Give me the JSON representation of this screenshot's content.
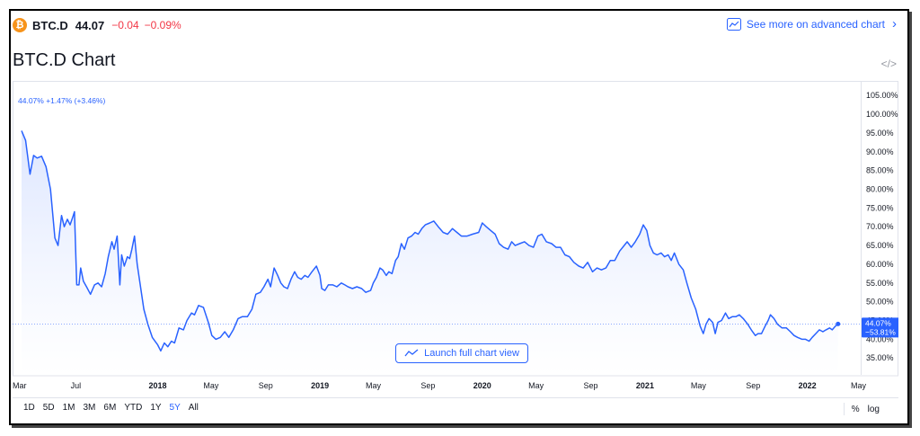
{
  "header": {
    "coin_icon": "bitcoin-icon",
    "coin_glyph": "₿",
    "symbol": "BTC.D",
    "price": "44.07",
    "change": "−0.04",
    "change_pct": "−0.09%",
    "advanced_link": "See more on advanced chart",
    "advanced_chevron": "›"
  },
  "title": "BTC.D Chart",
  "embed_icon": "</>",
  "chart_info": "44.07%  +1.47% (+3.46%)",
  "launch_button": "Launch full chart view",
  "colors": {
    "line": "#2962ff",
    "negative": "#f23645",
    "area_top": "#d9e3ff",
    "label_bg": "#2962ff"
  },
  "ranges": [
    {
      "label": "1D",
      "active": false
    },
    {
      "label": "5D",
      "active": false
    },
    {
      "label": "1M",
      "active": false
    },
    {
      "label": "3M",
      "active": false
    },
    {
      "label": "6M",
      "active": false
    },
    {
      "label": "YTD",
      "active": false
    },
    {
      "label": "1Y",
      "active": false
    },
    {
      "label": "5Y",
      "active": true
    },
    {
      "label": "All",
      "active": false
    }
  ],
  "scale_options": [
    "%",
    "log"
  ],
  "chart_data": {
    "type": "area",
    "title": "",
    "xlabel": "",
    "ylabel": "",
    "ylim": [
      30.5,
      106
    ],
    "yticks": [
      35,
      40,
      45,
      50,
      55,
      60,
      65,
      70,
      75,
      80,
      85,
      90,
      95,
      100,
      105
    ],
    "ytick_labels": [
      "35.00%",
      "40.00%",
      "45.00%",
      "50.00%",
      "55.00%",
      "60.00%",
      "65.00%",
      "70.00%",
      "75.00%",
      "80.00%",
      "85.00%",
      "90.00%",
      "95.00%",
      "100.00%",
      "105.00%"
    ],
    "xlim": [
      "2017-03-01",
      "2022-05-01"
    ],
    "xticks": [
      {
        "date": "2017-03-01",
        "label": "Mar",
        "bold": false
      },
      {
        "date": "2017-07-01",
        "label": "Jul",
        "bold": false
      },
      {
        "date": "2018-01-01",
        "label": "2018",
        "bold": true
      },
      {
        "date": "2018-05-01",
        "label": "May",
        "bold": false
      },
      {
        "date": "2018-09-01",
        "label": "Sep",
        "bold": false
      },
      {
        "date": "2019-01-01",
        "label": "2019",
        "bold": true
      },
      {
        "date": "2019-05-01",
        "label": "May",
        "bold": false
      },
      {
        "date": "2019-09-01",
        "label": "Sep",
        "bold": false
      },
      {
        "date": "2020-01-01",
        "label": "2020",
        "bold": true
      },
      {
        "date": "2020-05-01",
        "label": "May",
        "bold": false
      },
      {
        "date": "2020-09-01",
        "label": "Sep",
        "bold": false
      },
      {
        "date": "2021-01-01",
        "label": "2021",
        "bold": true
      },
      {
        "date": "2021-05-01",
        "label": "May",
        "bold": false
      },
      {
        "date": "2021-09-01",
        "label": "Sep",
        "bold": false
      },
      {
        "date": "2022-01-01",
        "label": "2022",
        "bold": true
      },
      {
        "date": "2022-05-01",
        "label": "May",
        "bold": false
      }
    ],
    "last_value": 44.07,
    "last_label": "44.07%",
    "last_change_label": "−53.81%",
    "series": [
      {
        "name": "BTC.D",
        "points": [
          [
            "2017-03-01",
            95.6
          ],
          [
            "2017-03-10",
            93.0
          ],
          [
            "2017-03-20",
            84.0
          ],
          [
            "2017-03-28",
            89.0
          ],
          [
            "2017-04-05",
            88.3
          ],
          [
            "2017-04-15",
            88.8
          ],
          [
            "2017-04-25",
            86.0
          ],
          [
            "2017-05-05",
            80.0
          ],
          [
            "2017-05-15",
            67.0
          ],
          [
            "2017-05-22",
            65.0
          ],
          [
            "2017-05-30",
            73.0
          ],
          [
            "2017-06-05",
            70.0
          ],
          [
            "2017-06-12",
            72.0
          ],
          [
            "2017-06-18",
            70.5
          ],
          [
            "2017-06-24",
            72.5
          ],
          [
            "2017-06-28",
            74.0
          ],
          [
            "2017-07-03",
            54.5
          ],
          [
            "2017-07-08",
            54.5
          ],
          [
            "2017-07-12",
            59.0
          ],
          [
            "2017-07-18",
            55.5
          ],
          [
            "2017-07-25",
            54.0
          ],
          [
            "2017-08-03",
            52.0
          ],
          [
            "2017-08-12",
            54.5
          ],
          [
            "2017-08-20",
            55.0
          ],
          [
            "2017-08-28",
            54.0
          ],
          [
            "2017-09-05",
            57.5
          ],
          [
            "2017-09-12",
            62.0
          ],
          [
            "2017-09-20",
            66.0
          ],
          [
            "2017-09-25",
            64.0
          ],
          [
            "2017-10-02",
            67.5
          ],
          [
            "2017-10-08",
            54.5
          ],
          [
            "2017-10-12",
            62.5
          ],
          [
            "2017-10-18",
            59.5
          ],
          [
            "2017-10-25",
            62.0
          ],
          [
            "2017-10-30",
            61.5
          ],
          [
            "2017-11-04",
            64.0
          ],
          [
            "2017-11-10",
            67.5
          ],
          [
            "2017-11-16",
            60.0
          ],
          [
            "2017-12-01",
            48.0
          ],
          [
            "2017-12-10",
            44.0
          ],
          [
            "2017-12-20",
            40.5
          ],
          [
            "2018-01-01",
            38.5
          ],
          [
            "2018-01-08",
            36.9
          ],
          [
            "2018-01-16",
            39.0
          ],
          [
            "2018-01-24",
            38.0
          ],
          [
            "2018-02-01",
            39.5
          ],
          [
            "2018-02-08",
            39.0
          ],
          [
            "2018-02-18",
            43.0
          ],
          [
            "2018-02-28",
            42.5
          ],
          [
            "2018-03-08",
            45.0
          ],
          [
            "2018-03-18",
            47.0
          ],
          [
            "2018-03-25",
            46.5
          ],
          [
            "2018-04-03",
            49.0
          ],
          [
            "2018-04-14",
            48.5
          ],
          [
            "2018-04-25",
            44.5
          ],
          [
            "2018-05-03",
            41.0
          ],
          [
            "2018-05-12",
            40.0
          ],
          [
            "2018-05-22",
            40.5
          ],
          [
            "2018-06-01",
            42.0
          ],
          [
            "2018-06-10",
            40.5
          ],
          [
            "2018-06-20",
            42.5
          ],
          [
            "2018-07-01",
            45.5
          ],
          [
            "2018-07-10",
            46.0
          ],
          [
            "2018-07-22",
            46.0
          ],
          [
            "2018-08-01",
            48.0
          ],
          [
            "2018-08-10",
            52.0
          ],
          [
            "2018-08-20",
            52.5
          ],
          [
            "2018-08-28",
            54.0
          ],
          [
            "2018-09-06",
            56.0
          ],
          [
            "2018-09-12",
            54.0
          ],
          [
            "2018-09-20",
            59.0
          ],
          [
            "2018-09-28",
            57.0
          ],
          [
            "2018-10-05",
            55.0
          ],
          [
            "2018-10-12",
            54.0
          ],
          [
            "2018-10-20",
            53.5
          ],
          [
            "2018-10-28",
            56.0
          ],
          [
            "2018-11-05",
            58.0
          ],
          [
            "2018-11-12",
            56.5
          ],
          [
            "2018-11-20",
            56.0
          ],
          [
            "2018-11-28",
            57.0
          ],
          [
            "2018-12-05",
            56.5
          ],
          [
            "2018-12-14",
            58.0
          ],
          [
            "2018-12-24",
            59.5
          ],
          [
            "2019-01-01",
            57.0
          ],
          [
            "2019-01-05",
            53.5
          ],
          [
            "2019-01-12",
            53.0
          ],
          [
            "2019-01-20",
            54.5
          ],
          [
            "2019-01-30",
            54.5
          ],
          [
            "2019-02-08",
            54.0
          ],
          [
            "2019-02-18",
            55.0
          ],
          [
            "2019-02-26",
            54.5
          ],
          [
            "2019-03-05",
            54.0
          ],
          [
            "2019-03-15",
            53.5
          ],
          [
            "2019-03-25",
            54.0
          ],
          [
            "2019-04-05",
            53.5
          ],
          [
            "2019-04-14",
            52.5
          ],
          [
            "2019-04-25",
            53.0
          ],
          [
            "2019-05-01",
            55.0
          ],
          [
            "2019-05-08",
            56.5
          ],
          [
            "2019-05-16",
            59.0
          ],
          [
            "2019-05-22",
            58.5
          ],
          [
            "2019-05-30",
            57.0
          ],
          [
            "2019-06-05",
            58.0
          ],
          [
            "2019-06-12",
            57.5
          ],
          [
            "2019-06-20",
            61.0
          ],
          [
            "2019-06-26",
            62.0
          ],
          [
            "2019-07-03",
            65.5
          ],
          [
            "2019-07-10",
            64.0
          ],
          [
            "2019-07-18",
            67.0
          ],
          [
            "2019-07-26",
            67.5
          ],
          [
            "2019-08-03",
            68.5
          ],
          [
            "2019-08-10",
            68.0
          ],
          [
            "2019-08-18",
            69.5
          ],
          [
            "2019-08-26",
            70.5
          ],
          [
            "2019-09-05",
            71.0
          ],
          [
            "2019-09-14",
            71.5
          ],
          [
            "2019-09-24",
            70.0
          ],
          [
            "2019-10-05",
            68.5
          ],
          [
            "2019-10-15",
            68.0
          ],
          [
            "2019-10-26",
            69.5
          ],
          [
            "2019-11-05",
            68.5
          ],
          [
            "2019-11-15",
            67.5
          ],
          [
            "2019-11-28",
            67.5
          ],
          [
            "2019-12-10",
            68.0
          ],
          [
            "2019-12-24",
            68.5
          ],
          [
            "2020-01-01",
            71.0
          ],
          [
            "2020-01-10",
            70.0
          ],
          [
            "2020-01-20",
            69.0
          ],
          [
            "2020-01-30",
            68.0
          ],
          [
            "2020-02-08",
            65.5
          ],
          [
            "2020-02-18",
            64.5
          ],
          [
            "2020-02-28",
            64.0
          ],
          [
            "2020-03-07",
            66.0
          ],
          [
            "2020-03-15",
            65.0
          ],
          [
            "2020-03-25",
            65.5
          ],
          [
            "2020-04-05",
            66.0
          ],
          [
            "2020-04-15",
            65.0
          ],
          [
            "2020-04-25",
            64.5
          ],
          [
            "2020-05-05",
            67.5
          ],
          [
            "2020-05-14",
            68.0
          ],
          [
            "2020-05-24",
            66.0
          ],
          [
            "2020-06-05",
            65.5
          ],
          [
            "2020-06-15",
            64.5
          ],
          [
            "2020-06-25",
            64.5
          ],
          [
            "2020-07-05",
            62.5
          ],
          [
            "2020-07-15",
            62.0
          ],
          [
            "2020-07-25",
            60.5
          ],
          [
            "2020-08-05",
            59.5
          ],
          [
            "2020-08-15",
            59.0
          ],
          [
            "2020-08-25",
            60.5
          ],
          [
            "2020-09-05",
            58.0
          ],
          [
            "2020-09-15",
            59.0
          ],
          [
            "2020-09-25",
            58.5
          ],
          [
            "2020-10-05",
            59.0
          ],
          [
            "2020-10-15",
            61.0
          ],
          [
            "2020-10-25",
            61.0
          ],
          [
            "2020-11-05",
            63.5
          ],
          [
            "2020-11-15",
            65.0
          ],
          [
            "2020-11-22",
            66.0
          ],
          [
            "2020-12-01",
            64.5
          ],
          [
            "2020-12-10",
            66.0
          ],
          [
            "2020-12-20",
            68.0
          ],
          [
            "2020-12-28",
            70.5
          ],
          [
            "2021-01-05",
            69.0
          ],
          [
            "2021-01-12",
            65.0
          ],
          [
            "2021-01-20",
            63.0
          ],
          [
            "2021-01-28",
            62.5
          ],
          [
            "2021-02-06",
            63.0
          ],
          [
            "2021-02-14",
            62.0
          ],
          [
            "2021-02-22",
            62.5
          ],
          [
            "2021-03-01",
            61.0
          ],
          [
            "2021-03-08",
            63.0
          ],
          [
            "2021-03-18",
            60.0
          ],
          [
            "2021-03-28",
            58.5
          ],
          [
            "2021-04-05",
            55.0
          ],
          [
            "2021-04-15",
            51.0
          ],
          [
            "2021-04-25",
            48.0
          ],
          [
            "2021-05-05",
            43.5
          ],
          [
            "2021-05-12",
            41.5
          ],
          [
            "2021-05-18",
            44.0
          ],
          [
            "2021-05-25",
            45.5
          ],
          [
            "2021-06-02",
            44.5
          ],
          [
            "2021-06-08",
            41.5
          ],
          [
            "2021-06-14",
            44.5
          ],
          [
            "2021-06-22",
            45.0
          ],
          [
            "2021-07-01",
            47.0
          ],
          [
            "2021-07-08",
            45.5
          ],
          [
            "2021-07-16",
            46.0
          ],
          [
            "2021-07-24",
            46.0
          ],
          [
            "2021-08-01",
            46.5
          ],
          [
            "2021-08-10",
            45.5
          ],
          [
            "2021-08-20",
            44.0
          ],
          [
            "2021-08-28",
            42.5
          ],
          [
            "2021-09-06",
            41.0
          ],
          [
            "2021-09-12",
            41.5
          ],
          [
            "2021-09-20",
            41.5
          ],
          [
            "2021-09-28",
            43.5
          ],
          [
            "2021-10-05",
            45.0
          ],
          [
            "2021-10-10",
            46.5
          ],
          [
            "2021-10-18",
            45.5
          ],
          [
            "2021-10-26",
            44.0
          ],
          [
            "2021-11-05",
            43.0
          ],
          [
            "2021-11-15",
            43.0
          ],
          [
            "2021-11-24",
            42.0
          ],
          [
            "2021-12-02",
            41.0
          ],
          [
            "2021-12-10",
            40.5
          ],
          [
            "2021-12-20",
            40.0
          ],
          [
            "2021-12-28",
            40.0
          ],
          [
            "2022-01-05",
            39.5
          ],
          [
            "2022-01-12",
            40.5
          ],
          [
            "2022-01-20",
            41.5
          ],
          [
            "2022-01-28",
            42.5
          ],
          [
            "2022-02-05",
            42.0
          ],
          [
            "2022-02-12",
            42.5
          ],
          [
            "2022-02-20",
            43.0
          ],
          [
            "2022-02-26",
            42.5
          ],
          [
            "2022-03-05",
            43.5
          ],
          [
            "2022-03-11",
            44.07
          ]
        ]
      }
    ]
  }
}
